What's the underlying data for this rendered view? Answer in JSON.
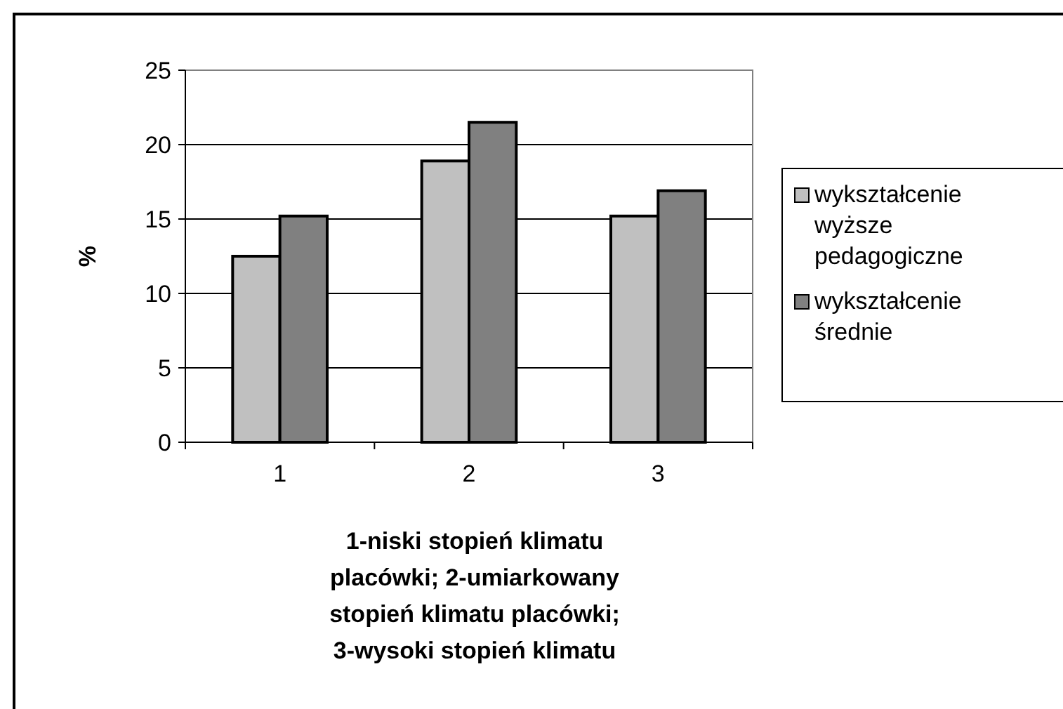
{
  "chart_data": {
    "type": "bar",
    "categories": [
      "1",
      "2",
      "3"
    ],
    "series": [
      {
        "name": "wykształcenie wyższe pedagogiczne",
        "color": "#c0c0c0",
        "values": [
          12.5,
          18.9,
          15.2
        ]
      },
      {
        "name": "wykształcenie średnie",
        "color": "#808080",
        "values": [
          15.2,
          21.5,
          16.9
        ]
      }
    ],
    "ylabel": "%",
    "xlabel": "1-niski stopień klimatu placówki; 2-umiarkowany stopień klimatu placówki; 3-wysoki stopień klimatu",
    "ylim": [
      0,
      25
    ],
    "yticks": [
      0,
      5,
      10,
      15,
      20,
      25
    ],
    "grid": "y",
    "legend": "right"
  }
}
